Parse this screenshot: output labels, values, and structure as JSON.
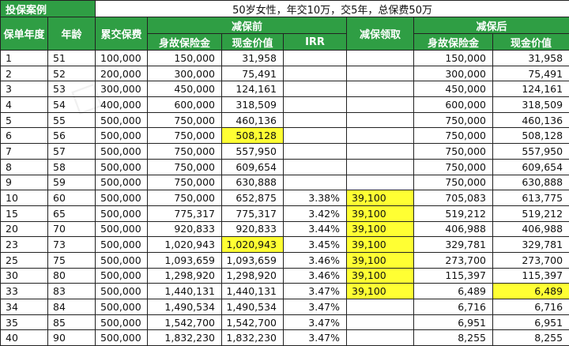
{
  "title_row": {
    "label": "投保案例",
    "title": "50岁女性，年交10万，交5年，总保费50万"
  },
  "headers": {
    "year": "保单年度",
    "age": "年龄",
    "paid": "累交保费",
    "before_group": "减保前",
    "death_benefit": "身故保险金",
    "cash_value": "现金价值",
    "irr": "IRR",
    "withdraw": "减保领取",
    "after_group": "减保后",
    "death_benefit_after": "身故保险金",
    "cash_value_after": "现金价值"
  },
  "rows": [
    [
      "1",
      "51",
      "100,000",
      "150,000",
      "31,958",
      "",
      "",
      "150,000",
      "31,958"
    ],
    [
      "2",
      "52",
      "200,000",
      "300,000",
      "75,491",
      "",
      "",
      "300,000",
      "75,491"
    ],
    [
      "3",
      "53",
      "300,000",
      "450,000",
      "124,161",
      "",
      "",
      "450,000",
      "124,161"
    ],
    [
      "4",
      "54",
      "400,000",
      "600,000",
      "318,509",
      "",
      "",
      "600,000",
      "318,509"
    ],
    [
      "5",
      "55",
      "500,000",
      "750,000",
      "460,136",
      "",
      "",
      "750,000",
      "460,136"
    ],
    [
      "6",
      "56",
      "500,000",
      "750,000",
      "508,128",
      "",
      "",
      "750,000",
      "508,128"
    ],
    [
      "7",
      "57",
      "500,000",
      "750,000",
      "557,950",
      "",
      "",
      "750,000",
      "557,950"
    ],
    [
      "8",
      "58",
      "500,000",
      "750,000",
      "609,654",
      "",
      "",
      "750,000",
      "609,654"
    ],
    [
      "9",
      "59",
      "500,000",
      "750,000",
      "630,888",
      "",
      "",
      "750,000",
      "630,888"
    ],
    [
      "10",
      "60",
      "500,000",
      "750,000",
      "652,875",
      "3.38%",
      "39,100",
      "705,083",
      "613,775"
    ],
    [
      "15",
      "65",
      "500,000",
      "775,317",
      "775,317",
      "3.42%",
      "39,100",
      "519,212",
      "519,212"
    ],
    [
      "20",
      "70",
      "500,000",
      "920,833",
      "920,833",
      "3.44%",
      "39,100",
      "406,988",
      "406,988"
    ],
    [
      "23",
      "73",
      "500,000",
      "1,020,943",
      "1,020,943",
      "3.45%",
      "39,100",
      "329,781",
      "329,781"
    ],
    [
      "25",
      "75",
      "500,000",
      "1,093,659",
      "1,093,659",
      "3.46%",
      "39,100",
      "273,700",
      "273,700"
    ],
    [
      "30",
      "80",
      "500,000",
      "1,298,920",
      "1,298,920",
      "3.46%",
      "39,100",
      "115,397",
      "115,397"
    ],
    [
      "33",
      "83",
      "500,000",
      "1,440,131",
      "1,440,131",
      "3.47%",
      "39,100",
      "6,489",
      "6,489"
    ],
    [
      "34",
      "84",
      "500,000",
      "1,490,534",
      "1,490,534",
      "3.47%",
      "",
      "6,716",
      "6,716"
    ],
    [
      "35",
      "85",
      "500,000",
      "1,542,700",
      "1,542,700",
      "3.47%",
      "",
      "6,951",
      "6,951"
    ],
    [
      "40",
      "90",
      "500,000",
      "1,832,230",
      "1,832,230",
      "3.47%",
      "",
      "8,255",
      "8,255"
    ]
  ],
  "highlights": [
    [
      5,
      4
    ],
    [
      9,
      6
    ],
    [
      10,
      6
    ],
    [
      11,
      6
    ],
    [
      12,
      4
    ],
    [
      12,
      6
    ],
    [
      13,
      6
    ],
    [
      14,
      6
    ],
    [
      15,
      6
    ],
    [
      15,
      8
    ]
  ],
  "colors": {
    "header_green": "#2f9e44",
    "highlight_yellow": "#ffff33"
  }
}
